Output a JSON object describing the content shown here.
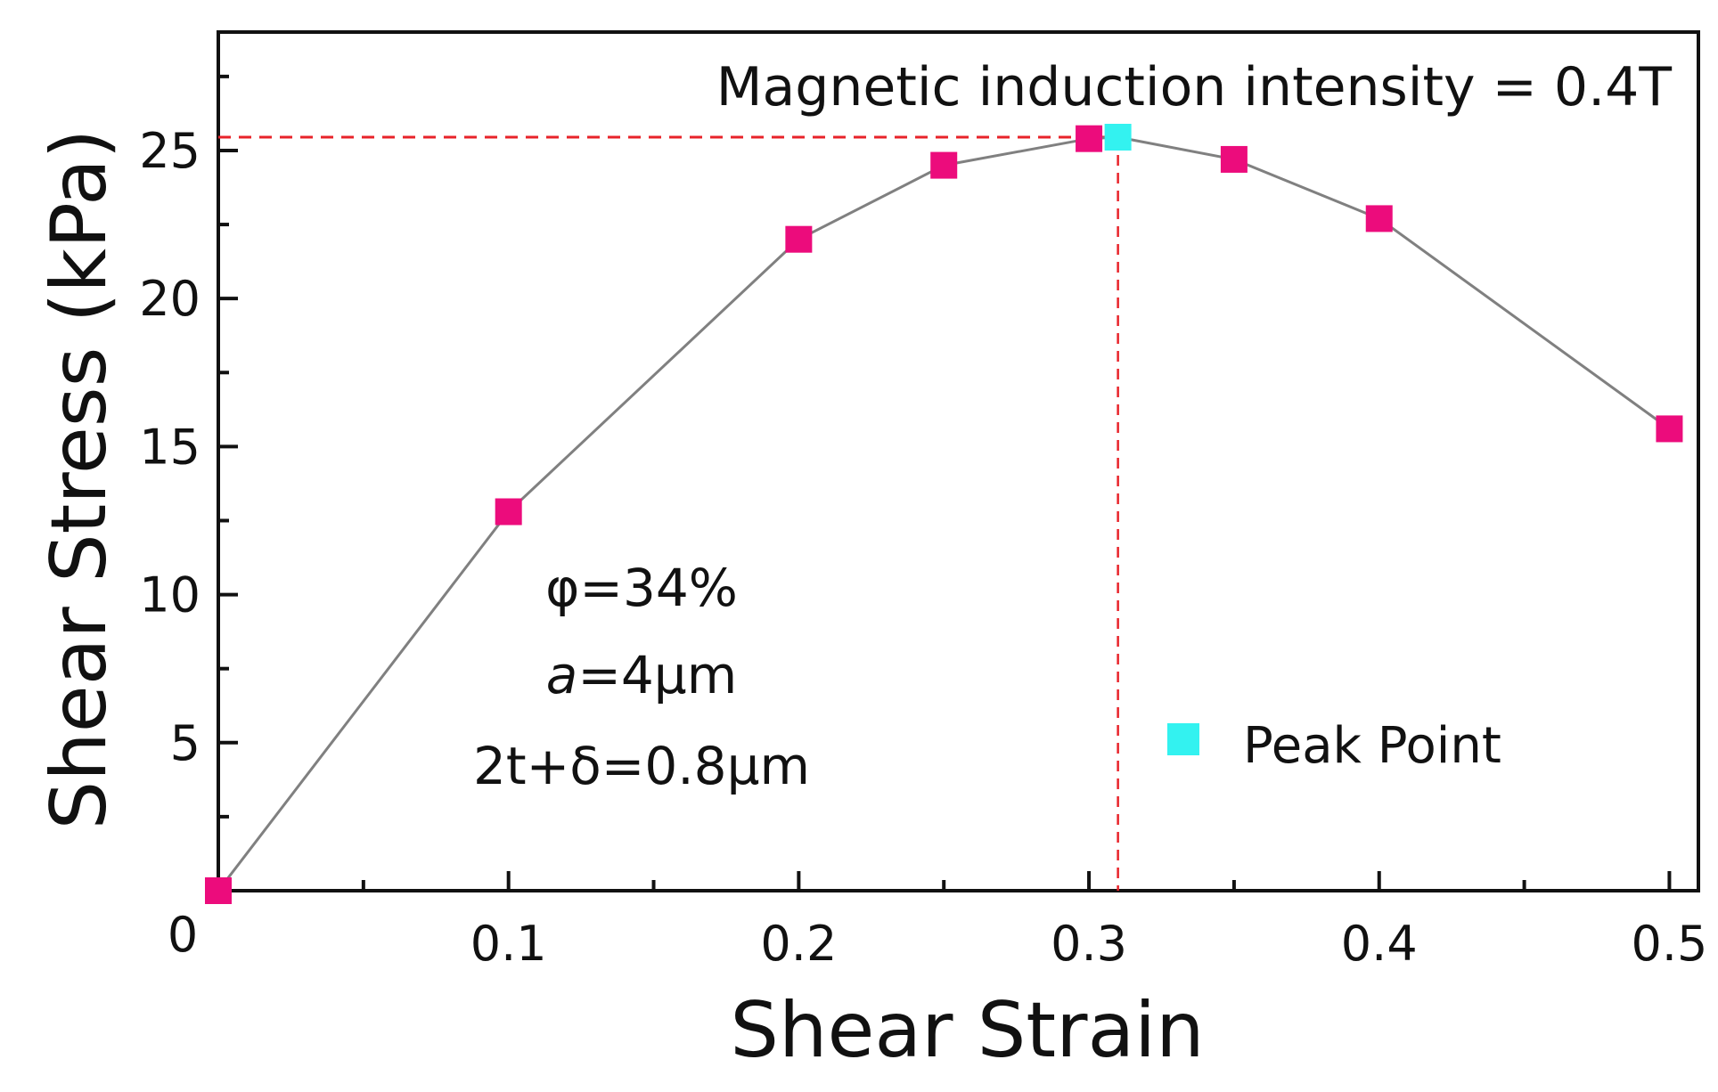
{
  "chart_data": {
    "type": "line",
    "title": "Magnetic induction intensity = 0.4T",
    "xlabel": "Shear Strain",
    "ylabel": "Shear Stress (kPa)",
    "xlim": [
      0,
      0.51
    ],
    "ylim": [
      0,
      29
    ],
    "x_ticks": [
      0.1,
      0.2,
      0.3,
      0.4,
      0.5
    ],
    "x_tick_labels": [
      "0.1",
      "0.2",
      "0.3",
      "0.4",
      "0.5"
    ],
    "x_minor_ticks": [
      0.05,
      0.15,
      0.25,
      0.35,
      0.45
    ],
    "y_ticks": [
      5,
      10,
      15,
      20,
      25
    ],
    "y_tick_labels": [
      "5",
      "10",
      "15",
      "20",
      "25"
    ],
    "y_minor_ticks": [
      2.5,
      7.5,
      12.5,
      17.5,
      22.5,
      27.5
    ],
    "origin_label": "0",
    "grid": false,
    "series": [
      {
        "name": "Shear stress",
        "x": [
          0,
          0.1,
          0.2,
          0.25,
          0.3,
          0.35,
          0.4,
          0.5
        ],
        "y": [
          0,
          12.8,
          22.0,
          24.5,
          25.4,
          24.7,
          22.7,
          15.6
        ],
        "marker_color": "#ec0c7c",
        "line_color": "#808080"
      }
    ],
    "peak": {
      "label": "Peak Point",
      "x": 0.31,
      "y": 25.45,
      "color": "#33f2f0"
    },
    "reference_line_color": "#e8232a",
    "annotations": [
      {
        "text": "φ=34%"
      },
      {
        "text_italic": "a",
        "text": "=4μm"
      },
      {
        "text": "2t+δ=0.8μm"
      }
    ],
    "legend": {
      "position": "lower-right",
      "entries": [
        "Peak Point"
      ]
    }
  }
}
